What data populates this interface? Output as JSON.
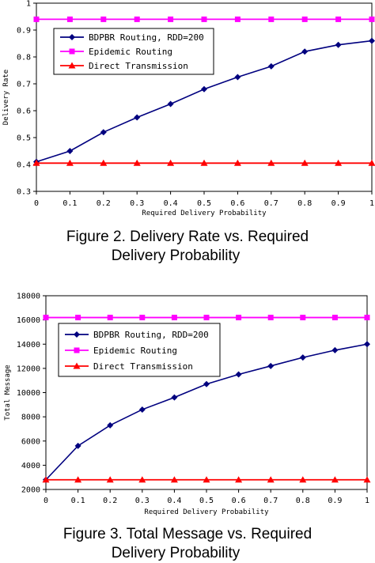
{
  "chart_data": [
    {
      "type": "line",
      "caption_line1": "Figure 2.  Delivery Rate vs. Required",
      "caption_line2": "Delivery Probability",
      "xlabel": "Required Delivery Probability",
      "ylabel": "Delivery Rate",
      "xlim": [
        0,
        1
      ],
      "ylim": [
        0.3,
        1
      ],
      "xticks": [
        "0",
        "0.1",
        "0.2",
        "0.3",
        "0.4",
        "0.5",
        "0.6",
        "0.7",
        "0.8",
        "0.9",
        "1"
      ],
      "yticks": [
        "0.3",
        "0.4",
        "0.5",
        "0.6",
        "0.7",
        "0.8",
        "0.9",
        "1"
      ],
      "x": [
        0,
        0.1,
        0.2,
        0.3,
        0.4,
        0.5,
        0.6,
        0.7,
        0.8,
        0.9,
        1
      ],
      "legend_position": "top-left",
      "series": [
        {
          "name": "BDPBR Routing, RDD=200",
          "color": "#00007f",
          "marker": "diamond",
          "values": [
            0.41,
            0.45,
            0.52,
            0.575,
            0.625,
            0.68,
            0.725,
            0.765,
            0.82,
            0.845,
            0.86
          ]
        },
        {
          "name": "Epidemic Routing",
          "color": "#ff00ff",
          "marker": "square",
          "values": [
            0.94,
            0.94,
            0.94,
            0.94,
            0.94,
            0.94,
            0.94,
            0.94,
            0.94,
            0.94,
            0.94
          ]
        },
        {
          "name": "Direct Transmission",
          "color": "#ff0000",
          "marker": "triangle",
          "values": [
            0.405,
            0.405,
            0.405,
            0.405,
            0.405,
            0.405,
            0.405,
            0.405,
            0.405,
            0.405,
            0.405
          ]
        }
      ]
    },
    {
      "type": "line",
      "caption_line1": "Figure 3.  Total Message vs. Required",
      "caption_line2": "Delivery Probability",
      "xlabel": "Required Delivery Probability",
      "ylabel": "Total Message",
      "xlim": [
        0,
        1
      ],
      "ylim": [
        2000,
        18000
      ],
      "xticks": [
        "0",
        "0.1",
        "0.2",
        "0.3",
        "0.4",
        "0.5",
        "0.6",
        "0.7",
        "0.8",
        "0.9",
        "1"
      ],
      "yticks": [
        "2000",
        "4000",
        "6000",
        "8000",
        "10000",
        "12000",
        "14000",
        "16000",
        "18000"
      ],
      "x": [
        0,
        0.1,
        0.2,
        0.3,
        0.4,
        0.5,
        0.6,
        0.7,
        0.8,
        0.9,
        1
      ],
      "legend_position": "top-left",
      "series": [
        {
          "name": "BDPBR Routing, RDD=200",
          "color": "#00007f",
          "marker": "diamond",
          "values": [
            2800,
            5600,
            7300,
            8600,
            9600,
            10700,
            11500,
            12200,
            12900,
            13500,
            14000
          ]
        },
        {
          "name": "Epidemic Routing",
          "color": "#ff00ff",
          "marker": "square",
          "values": [
            16200,
            16200,
            16200,
            16200,
            16200,
            16200,
            16200,
            16200,
            16200,
            16200,
            16200
          ]
        },
        {
          "name": "Direct Transmission",
          "color": "#ff0000",
          "marker": "triangle",
          "values": [
            2800,
            2800,
            2800,
            2800,
            2800,
            2800,
            2800,
            2800,
            2800,
            2800,
            2800
          ]
        }
      ]
    }
  ]
}
